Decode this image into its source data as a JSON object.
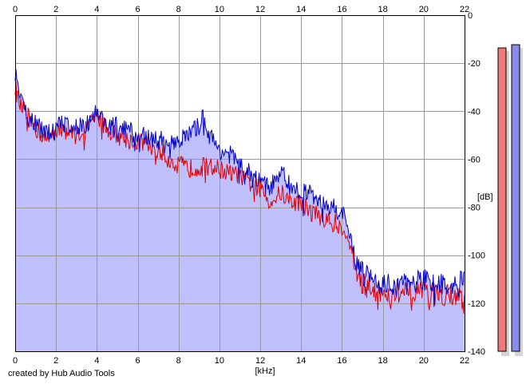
{
  "credit": "created by Hub Audio Tools",
  "colors": {
    "channel_left": "#e00000",
    "channel_right": "#0000c8",
    "fill": "#c0c0ff",
    "grid": "#999999",
    "meter_left": "#ee7b7b",
    "meter_right": "#8a8ae8"
  },
  "chart_data": {
    "type": "line",
    "xlabel": "[kHz]",
    "ylabel": "[dB]",
    "xlim": [
      0,
      22
    ],
    "ylim": [
      -140,
      0
    ],
    "x_ticks": [
      0,
      2,
      4,
      6,
      8,
      10,
      12,
      14,
      16,
      18,
      20,
      22
    ],
    "y_ticks": [
      0,
      -20,
      -40,
      -60,
      -80,
      -100,
      -120,
      -140
    ],
    "grid": true,
    "series": [
      {
        "color": "#e00000",
        "x": [
          0,
          0.25,
          0.5,
          0.75,
          1,
          1.5,
          2,
          2.5,
          3,
          3.5,
          4,
          4.25,
          4.5,
          5,
          5.5,
          6,
          6.5,
          7,
          7.5,
          8,
          8.5,
          9,
          9.5,
          10,
          10.5,
          11,
          11.5,
          12,
          12.5,
          13,
          13.5,
          14,
          14.5,
          15,
          15.5,
          16,
          16.25,
          16.5,
          16.75,
          17,
          17.5,
          18,
          18.5,
          19,
          19.5,
          20,
          20.5,
          21,
          21.5,
          22
        ],
        "y": [
          -30,
          -38,
          -40,
          -44,
          -47,
          -52,
          -47,
          -48,
          -50,
          -47,
          -42,
          -44,
          -48,
          -50,
          -52,
          -52,
          -54,
          -56,
          -60,
          -62,
          -64,
          -63,
          -63,
          -64,
          -66,
          -67,
          -70,
          -72,
          -78,
          -74,
          -78,
          -78,
          -82,
          -84,
          -86,
          -88,
          -92,
          -100,
          -108,
          -112,
          -114,
          -116,
          -116,
          -116,
          -116,
          -116,
          -116,
          -116,
          -116,
          -120
        ]
      },
      {
        "color": "#0000c8",
        "x": [
          0,
          0.25,
          0.5,
          0.75,
          1,
          1.5,
          2,
          2.5,
          3,
          3.5,
          4,
          4.25,
          4.5,
          5,
          5.5,
          6,
          6.5,
          7,
          7.5,
          8,
          8.5,
          9,
          9.25,
          9.5,
          10,
          10.5,
          11,
          11.5,
          12,
          12.5,
          13,
          13.5,
          14,
          14.5,
          15,
          15.5,
          16,
          16.25,
          16.5,
          16.75,
          17,
          17.5,
          18,
          18.5,
          19,
          19.5,
          20,
          20.5,
          21,
          21.5,
          22
        ],
        "y": [
          -25,
          -35,
          -40,
          -43,
          -45,
          -50,
          -46,
          -45,
          -46,
          -45,
          -40,
          -43,
          -46,
          -46,
          -48,
          -50,
          -51,
          -52,
          -52,
          -52,
          -50,
          -46,
          -42,
          -50,
          -56,
          -58,
          -62,
          -66,
          -70,
          -72,
          -64,
          -72,
          -74,
          -74,
          -78,
          -80,
          -82,
          -88,
          -96,
          -104,
          -108,
          -110,
          -112,
          -112,
          -112,
          -112,
          -110,
          -112,
          -112,
          -112,
          -110
        ]
      }
    ]
  }
}
